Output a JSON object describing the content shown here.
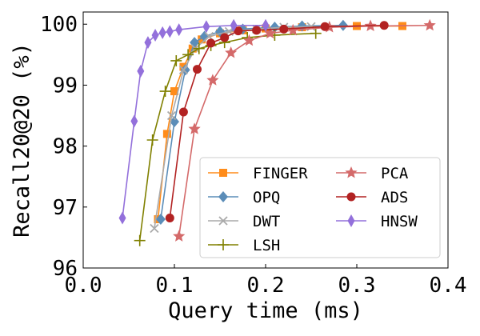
{
  "chart_data": {
    "type": "line",
    "title": "",
    "xlabel": "Query time (ms)",
    "ylabel": "Recall20@20 (%)",
    "xlim": [
      0.0,
      0.4
    ],
    "ylim": [
      96,
      100.2
    ],
    "xticks": [
      0.0,
      0.1,
      0.2,
      0.3,
      0.4
    ],
    "xtick_labels": [
      "0.0",
      "0.1",
      "0.2",
      "0.3",
      "0.4"
    ],
    "yticks": [
      96,
      97,
      98,
      99,
      100
    ],
    "ytick_labels": [
      "96",
      "97",
      "98",
      "99",
      "100"
    ],
    "grid": false,
    "legend_position": "bottom-right",
    "series": [
      {
        "name": "FINGER",
        "color": "#ff8c1a",
        "marker": "square",
        "x": [
          0.082,
          0.092,
          0.1,
          0.11,
          0.12,
          0.13,
          0.15,
          0.175,
          0.2,
          0.24,
          0.3,
          0.35
        ],
        "y": [
          96.8,
          98.2,
          98.9,
          99.3,
          99.6,
          99.75,
          99.85,
          99.9,
          99.93,
          99.95,
          99.97,
          99.97
        ]
      },
      {
        "name": "OPQ",
        "color": "#5b8db8",
        "marker": "diamond",
        "x": [
          0.085,
          0.1,
          0.112,
          0.122,
          0.133,
          0.15,
          0.175,
          0.21,
          0.24,
          0.285
        ],
        "y": [
          96.8,
          98.4,
          99.25,
          99.7,
          99.8,
          99.88,
          99.92,
          99.95,
          99.97,
          99.98
        ]
      },
      {
        "name": "DWT",
        "color": "#aaaaaa",
        "marker": "x",
        "x": [
          0.078,
          0.097,
          0.11,
          0.123,
          0.138,
          0.16,
          0.19,
          0.22,
          0.25
        ],
        "y": [
          96.65,
          98.5,
          99.25,
          99.6,
          99.8,
          99.88,
          99.92,
          99.95,
          99.96
        ]
      },
      {
        "name": "LSH",
        "color": "#808000",
        "marker": "plus",
        "x": [
          0.062,
          0.076,
          0.09,
          0.102,
          0.115,
          0.127,
          0.14,
          0.155,
          0.18,
          0.21,
          0.255
        ],
        "y": [
          96.45,
          98.1,
          98.9,
          99.4,
          99.5,
          99.6,
          99.65,
          99.7,
          99.78,
          99.82,
          99.85
        ]
      },
      {
        "name": "PCA",
        "color": "#d46a6a",
        "marker": "star",
        "x": [
          0.105,
          0.122,
          0.142,
          0.162,
          0.182,
          0.205,
          0.23,
          0.27,
          0.315,
          0.38
        ],
        "y": [
          96.52,
          98.28,
          99.08,
          99.53,
          99.73,
          99.85,
          99.9,
          99.95,
          99.97,
          99.98
        ]
      },
      {
        "name": "ADS",
        "color": "#b22222",
        "marker": "circle",
        "x": [
          0.095,
          0.11,
          0.125,
          0.14,
          0.155,
          0.17,
          0.19,
          0.22,
          0.265,
          0.33
        ],
        "y": [
          96.82,
          98.56,
          99.26,
          99.69,
          99.78,
          99.89,
          99.9,
          99.92,
          99.96,
          99.98
        ]
      },
      {
        "name": "HNSW",
        "color": "#9370db",
        "marker": "thin_diamond",
        "x": [
          0.043,
          0.056,
          0.063,
          0.071,
          0.079,
          0.087,
          0.095,
          0.105,
          0.135,
          0.165,
          0.2
        ],
        "y": [
          96.82,
          98.41,
          99.23,
          99.7,
          99.82,
          99.86,
          99.88,
          99.91,
          99.96,
          99.98,
          99.98
        ]
      }
    ]
  }
}
